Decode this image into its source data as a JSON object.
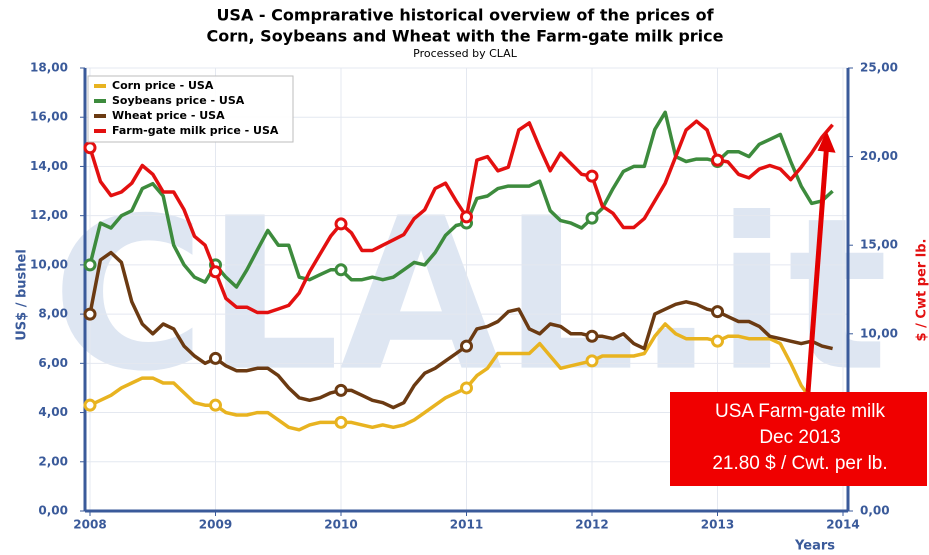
{
  "chart_data": {
    "type": "line",
    "title": "USA - Comprarative historical overview of the prices of",
    "title_line2": "Corn, Soybeans and Wheat with the Farm-gate milk price",
    "subtitle": "Processed by CLAL",
    "watermark": "CLAL.it",
    "xlabel": "Years",
    "ylabel": "US$ / bushel",
    "y2label": "$ / Cwt per lb.",
    "xlim": [
      2008,
      2014
    ],
    "xticks": [
      2008,
      2009,
      2010,
      2011,
      2012,
      2013,
      2014
    ],
    "ylim": [
      0,
      18
    ],
    "yticks": [
      {
        "value": 0,
        "label": "0,00"
      },
      {
        "value": 2,
        "label": "2,00"
      },
      {
        "value": 4,
        "label": "4,00"
      },
      {
        "value": 6,
        "label": "6,00"
      },
      {
        "value": 8,
        "label": "8,00"
      },
      {
        "value": 10,
        "label": "10,00"
      },
      {
        "value": 12,
        "label": "12,00"
      },
      {
        "value": 14,
        "label": "14,00"
      },
      {
        "value": 16,
        "label": "16,00"
      },
      {
        "value": 18,
        "label": "18,00"
      }
    ],
    "y2lim": [
      0,
      25
    ],
    "y2ticks": [
      {
        "value": 0,
        "label": "0,00"
      },
      {
        "value": 5,
        "label": "5,00"
      },
      {
        "value": 10,
        "label": "10,00"
      },
      {
        "value": 15,
        "label": "15,00"
      },
      {
        "value": 20,
        "label": "20,00"
      },
      {
        "value": 25,
        "label": "25,00"
      }
    ],
    "grid": true,
    "legend": "upper left",
    "x": [
      2008,
      2008.083,
      2008.167,
      2008.25,
      2008.333,
      2008.417,
      2008.5,
      2008.583,
      2008.667,
      2008.75,
      2008.833,
      2008.917,
      2009,
      2009.083,
      2009.167,
      2009.25,
      2009.333,
      2009.417,
      2009.5,
      2009.583,
      2009.667,
      2009.75,
      2009.833,
      2009.917,
      2010,
      2010.083,
      2010.167,
      2010.25,
      2010.333,
      2010.417,
      2010.5,
      2010.583,
      2010.667,
      2010.75,
      2010.833,
      2010.917,
      2011,
      2011.083,
      2011.167,
      2011.25,
      2011.333,
      2011.417,
      2011.5,
      2011.583,
      2011.667,
      2011.75,
      2011.833,
      2011.917,
      2012,
      2012.083,
      2012.167,
      2012.25,
      2012.333,
      2012.417,
      2012.5,
      2012.583,
      2012.667,
      2012.75,
      2012.833,
      2012.917,
      2013,
      2013.083,
      2013.167,
      2013.25,
      2013.333,
      2013.417,
      2013.5,
      2013.583,
      2013.667,
      2013.75,
      2013.833,
      2013.917
    ],
    "series": [
      {
        "name": "Corn price - USA",
        "color": "#e8b320",
        "values": [
          4.3,
          4.5,
          4.7,
          5.0,
          5.2,
          5.4,
          5.4,
          5.2,
          5.2,
          4.8,
          4.4,
          4.3,
          4.3,
          4.0,
          3.9,
          3.9,
          4.0,
          4.0,
          3.7,
          3.4,
          3.3,
          3.5,
          3.6,
          3.6,
          3.6,
          3.6,
          3.5,
          3.4,
          3.5,
          3.4,
          3.5,
          3.7,
          4.0,
          4.3,
          4.6,
          4.8,
          5.0,
          5.5,
          5.8,
          6.4,
          6.4,
          6.4,
          6.4,
          6.8,
          6.3,
          5.8,
          5.9,
          6.0,
          6.1,
          6.3,
          6.3,
          6.3,
          6.3,
          6.4,
          7.1,
          7.6,
          7.2,
          7.0,
          7.0,
          7.0,
          6.9,
          7.1,
          7.1,
          7.0,
          7.0,
          7.0,
          6.8,
          6.0,
          5.1,
          4.5,
          4.4,
          4.4
        ]
      },
      {
        "name": "Soybeans price - USA",
        "color": "#3d8b3d",
        "values": [
          10.0,
          11.7,
          11.5,
          12.0,
          12.2,
          13.1,
          13.3,
          12.8,
          10.8,
          10.0,
          9.5,
          9.3,
          10.0,
          9.5,
          9.1,
          9.8,
          10.6,
          11.4,
          10.8,
          10.8,
          9.5,
          9.4,
          9.6,
          9.8,
          9.8,
          9.4,
          9.4,
          9.5,
          9.4,
          9.5,
          9.8,
          10.1,
          10.0,
          10.5,
          11.2,
          11.6,
          11.7,
          12.7,
          12.8,
          13.1,
          13.2,
          13.2,
          13.2,
          13.4,
          12.2,
          11.8,
          11.7,
          11.5,
          11.9,
          12.3,
          13.1,
          13.8,
          14.0,
          14.0,
          15.5,
          16.2,
          14.4,
          14.2,
          14.3,
          14.3,
          14.2,
          14.6,
          14.6,
          14.4,
          14.9,
          15.1,
          15.3,
          14.2,
          13.2,
          12.5,
          12.6,
          13.0
        ]
      },
      {
        "name": "Wheat price - USA",
        "color": "#6b3a12",
        "values": [
          8.0,
          10.2,
          10.5,
          10.1,
          8.5,
          7.6,
          7.2,
          7.6,
          7.4,
          6.7,
          6.3,
          6.0,
          6.2,
          5.9,
          5.7,
          5.7,
          5.8,
          5.8,
          5.5,
          5.0,
          4.6,
          4.5,
          4.6,
          4.8,
          4.9,
          4.9,
          4.7,
          4.5,
          4.4,
          4.2,
          4.4,
          5.1,
          5.6,
          5.8,
          6.1,
          6.4,
          6.7,
          7.4,
          7.5,
          7.7,
          8.1,
          8.2,
          7.4,
          7.2,
          7.6,
          7.5,
          7.2,
          7.2,
          7.1,
          7.1,
          7.0,
          7.2,
          6.8,
          6.6,
          8.0,
          8.2,
          8.4,
          8.5,
          8.4,
          8.2,
          8.1,
          7.9,
          7.7,
          7.7,
          7.5,
          7.1,
          7.0,
          6.9,
          6.8,
          6.9,
          6.7,
          6.6
        ]
      },
      {
        "name": "Farm-gate milk price - USA",
        "color": "#e31010",
        "axis": "y2",
        "values": [
          20.5,
          18.6,
          17.8,
          18.0,
          18.5,
          19.5,
          19.0,
          18.0,
          18.0,
          17.0,
          15.5,
          15.0,
          13.5,
          12.0,
          11.5,
          11.5,
          11.2,
          11.2,
          11.4,
          11.6,
          12.3,
          13.5,
          14.5,
          15.5,
          16.2,
          15.7,
          14.7,
          14.7,
          15.0,
          15.3,
          15.6,
          16.5,
          17.0,
          18.2,
          18.5,
          17.5,
          16.6,
          19.8,
          20.0,
          19.2,
          19.4,
          21.5,
          21.9,
          20.5,
          19.2,
          20.2,
          19.6,
          19.0,
          18.9,
          17.2,
          16.8,
          16.0,
          16.0,
          16.5,
          17.5,
          18.5,
          20.0,
          21.5,
          22.0,
          21.5,
          19.8,
          19.7,
          19.0,
          18.8,
          19.3,
          19.5,
          19.3,
          18.7,
          19.4,
          20.2,
          21.1,
          21.8
        ]
      }
    ],
    "annotation": [
      "USA Farm-gate milk",
      "Dec 2013",
      "21.80 $ / Cwt. per lb."
    ]
  }
}
